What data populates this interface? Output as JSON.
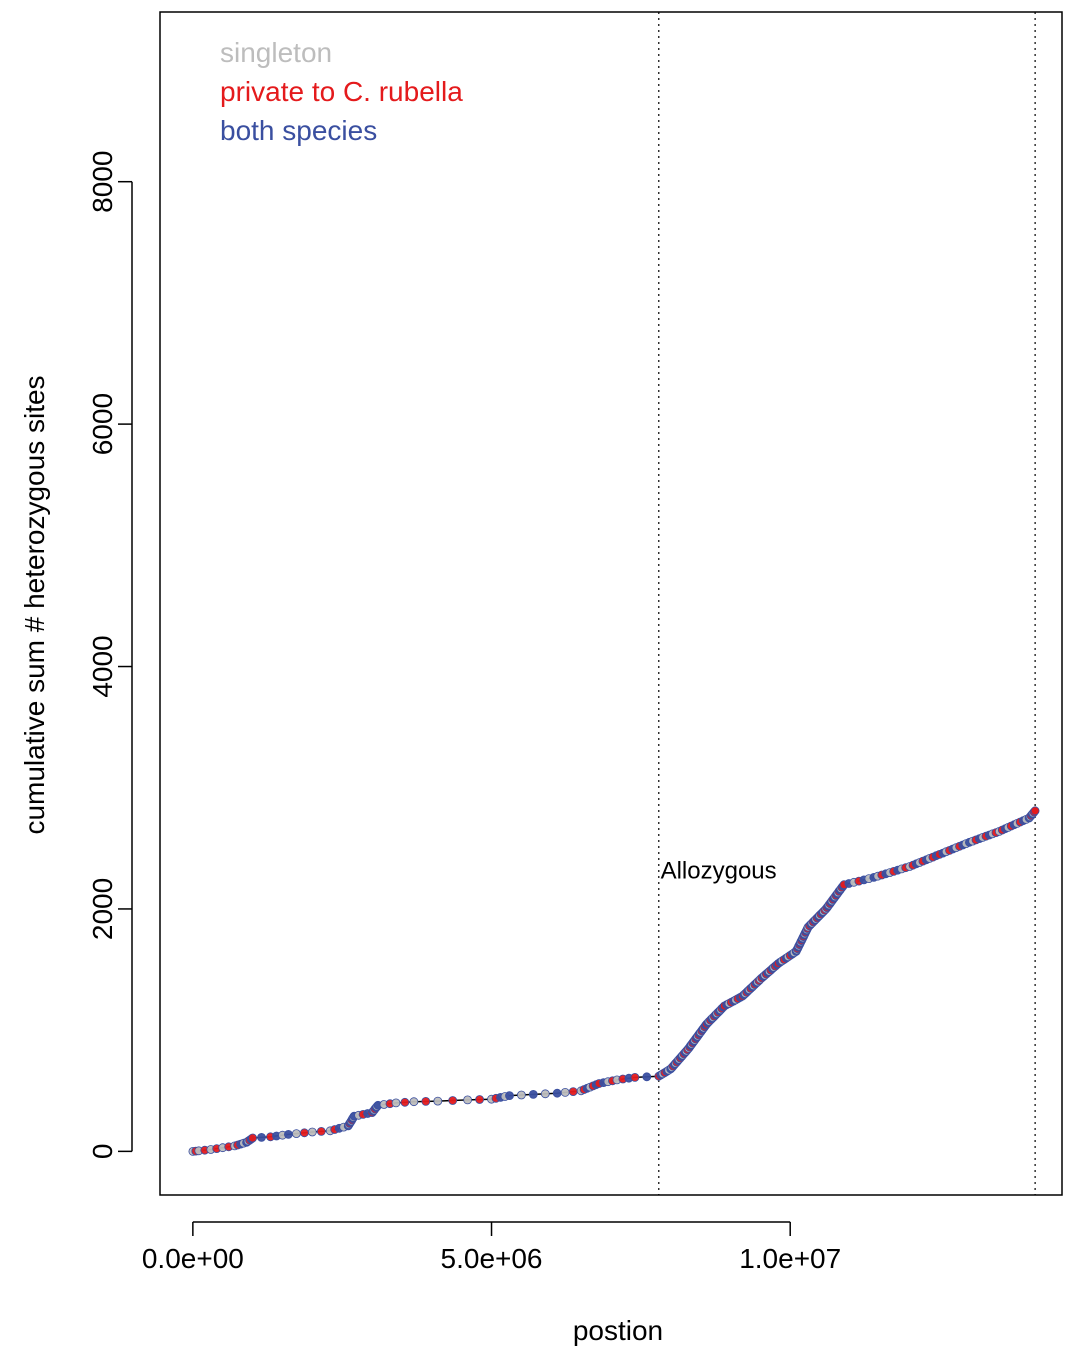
{
  "chart_data": {
    "type": "scatter",
    "xlabel": "postion",
    "ylabel": "cumulative sum # heterozygous sites",
    "xlim": [
      -550000,
      14550000
    ],
    "ylim": [
      -360,
      9400
    ],
    "x_ticks": [
      0,
      5000000,
      10000000
    ],
    "x_tick_labels": [
      "0.0e+00",
      "5.0e+06",
      "1.0e+07"
    ],
    "y_ticks": [
      0,
      2000,
      4000,
      6000,
      8000
    ],
    "y_tick_labels": [
      "0",
      "2000",
      "4000",
      "6000",
      "8000"
    ],
    "grid": false,
    "legend": {
      "position": "top-left",
      "entries": [
        {
          "label": "singleton",
          "color": "#bdbdbd"
        },
        {
          "label": "private to C. rubella",
          "color": "#e41a1c"
        },
        {
          "label": "both species",
          "color": "#3a4fa0"
        }
      ]
    },
    "reference_lines": [
      {
        "x": 7800000,
        "style": "dotted"
      },
      {
        "x": 14100000,
        "style": "dotted"
      }
    ],
    "annotations": [
      {
        "text": "Allozygous",
        "x": 7830000,
        "y": 2250
      }
    ],
    "series": [
      {
        "values": [
          [
            0,
            0
          ],
          [
            100000,
            5
          ],
          [
            300000,
            15
          ],
          [
            500000,
            30
          ],
          [
            700000,
            45
          ],
          [
            900000,
            75
          ],
          [
            1000000,
            110
          ],
          [
            1300000,
            120
          ],
          [
            1600000,
            140
          ],
          [
            2000000,
            160
          ],
          [
            2300000,
            170
          ],
          [
            2600000,
            210
          ],
          [
            2700000,
            290
          ],
          [
            3000000,
            320
          ],
          [
            3100000,
            380
          ],
          [
            3400000,
            400
          ],
          [
            3700000,
            410
          ],
          [
            4100000,
            415
          ],
          [
            4600000,
            425
          ],
          [
            5000000,
            430
          ],
          [
            5300000,
            460
          ],
          [
            5700000,
            470
          ],
          [
            6100000,
            480
          ],
          [
            6500000,
            500
          ],
          [
            6800000,
            560
          ],
          [
            7100000,
            590
          ],
          [
            7400000,
            610
          ],
          [
            7800000,
            620
          ],
          [
            8000000,
            680
          ],
          [
            8300000,
            850
          ],
          [
            8600000,
            1050
          ],
          [
            8900000,
            1200
          ],
          [
            9200000,
            1280
          ],
          [
            9500000,
            1420
          ],
          [
            9800000,
            1550
          ],
          [
            10100000,
            1650
          ],
          [
            10300000,
            1850
          ],
          [
            10600000,
            2000
          ],
          [
            10900000,
            2200
          ],
          [
            11400000,
            2260
          ],
          [
            12000000,
            2350
          ],
          [
            12500000,
            2450
          ],
          [
            13000000,
            2550
          ],
          [
            13500000,
            2640
          ],
          [
            14000000,
            2750
          ],
          [
            14100000,
            2810
          ]
        ]
      }
    ]
  }
}
